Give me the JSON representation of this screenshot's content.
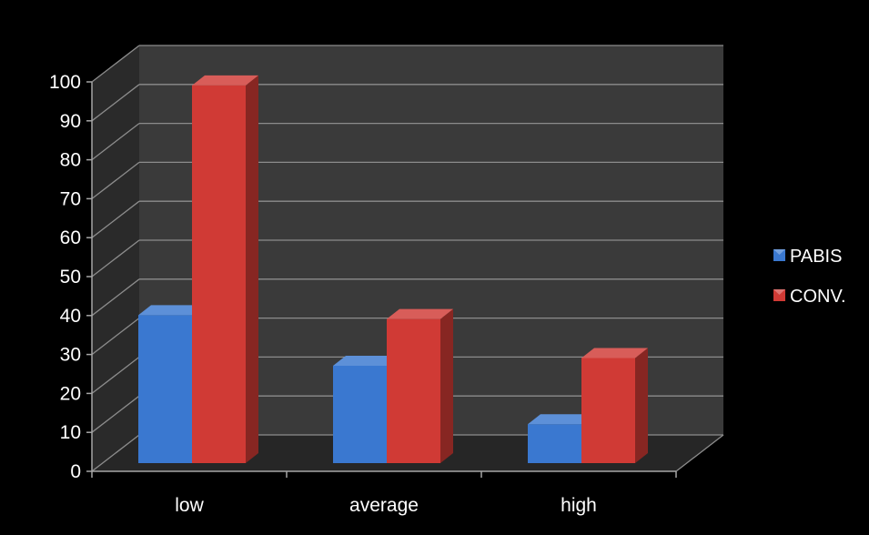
{
  "chart_data": {
    "type": "bar",
    "title": "",
    "xlabel": "",
    "ylabel": "",
    "categories": [
      "low",
      "average",
      "high"
    ],
    "series": [
      {
        "name": "PABIS",
        "values": [
          38,
          25,
          10
        ]
      },
      {
        "name": "CONV.",
        "values": [
          97,
          37,
          27
        ]
      }
    ],
    "ylim": [
      0,
      100
    ],
    "yticks": [
      "0",
      "10",
      "20",
      "30",
      "40",
      "50",
      "60",
      "70",
      "80",
      "90",
      "100"
    ],
    "grid": true,
    "legend_position": "right",
    "style": "3d-clustered-column"
  },
  "colors": {
    "background": "#000000",
    "wall": "#3a3a3a",
    "side_wall": "#2a2a2a",
    "floor": "#262626",
    "gridline": "#8c8c8c",
    "axis": "#a6a6a6",
    "text": "#ffffff",
    "series": [
      "#3a78d0",
      "#d03a35"
    ]
  }
}
